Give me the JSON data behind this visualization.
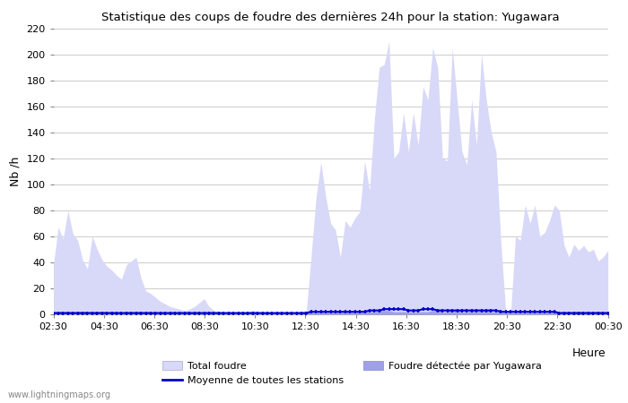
{
  "title": "Statistique des coups de foudre des dernières 24h pour la station: Yugawara",
  "xlabel": "Heure",
  "ylabel": "Nb /h",
  "watermark": "www.lightningmaps.org",
  "ylim": [
    0,
    220
  ],
  "yticks": [
    0,
    20,
    40,
    60,
    80,
    100,
    120,
    140,
    160,
    180,
    200,
    220
  ],
  "xtick_labels": [
    "02:30",
    "04:30",
    "06:30",
    "08:30",
    "10:30",
    "12:30",
    "14:30",
    "16:30",
    "18:30",
    "20:30",
    "22:30",
    "00:30"
  ],
  "color_total": "#d8d8f8",
  "color_detected": "#a0a0e8",
  "color_avg": "#0000cc",
  "bg_color": "#ffffff",
  "grid_color": "#cccccc",
  "total_foudre": [
    38,
    67,
    58,
    80,
    62,
    57,
    42,
    35,
    60,
    50,
    42,
    37,
    34,
    30,
    27,
    38,
    41,
    44,
    28,
    18,
    16,
    13,
    10,
    8,
    6,
    5,
    4,
    3,
    4,
    6,
    9,
    12,
    6,
    3,
    2,
    1,
    0,
    0,
    0,
    1,
    2,
    3,
    2,
    1,
    0,
    0,
    0,
    0,
    0,
    0,
    1,
    2,
    3,
    45,
    90,
    117,
    90,
    70,
    65,
    44,
    72,
    67,
    74,
    79,
    118,
    95,
    150,
    190,
    192,
    210,
    120,
    125,
    155,
    125,
    155,
    130,
    175,
    165,
    205,
    190,
    120,
    118,
    205,
    165,
    125,
    115,
    165,
    130,
    200,
    165,
    140,
    125,
    55,
    2,
    0,
    60,
    57,
    84,
    70,
    84,
    60,
    63,
    72,
    84,
    80,
    53,
    44,
    54,
    49,
    53,
    48,
    50,
    41,
    44,
    49
  ],
  "detected_foudre": [
    2,
    2,
    2,
    2,
    2,
    2,
    2,
    2,
    2,
    2,
    2,
    2,
    2,
    1,
    1,
    2,
    2,
    2,
    2,
    1,
    1,
    1,
    1,
    1,
    1,
    1,
    1,
    1,
    1,
    1,
    1,
    1,
    1,
    1,
    1,
    1,
    1,
    1,
    1,
    1,
    1,
    1,
    1,
    1,
    1,
    1,
    1,
    1,
    1,
    1,
    1,
    1,
    1,
    2,
    2,
    2,
    2,
    2,
    2,
    2,
    2,
    2,
    2,
    2,
    2,
    2,
    2,
    3,
    3,
    3,
    2,
    2,
    2,
    2,
    2,
    2,
    2,
    2,
    3,
    3,
    2,
    2,
    3,
    3,
    2,
    2,
    3,
    2,
    3,
    3,
    2,
    2,
    2,
    2,
    2,
    2,
    2,
    2,
    2,
    2,
    2,
    2,
    2,
    2,
    2,
    2,
    2,
    2,
    2,
    2,
    2,
    2,
    2,
    2,
    2
  ],
  "avg_line": [
    1,
    1,
    1,
    1,
    1,
    1,
    1,
    1,
    1,
    1,
    1,
    1,
    1,
    1,
    1,
    1,
    1,
    1,
    1,
    1,
    1,
    1,
    1,
    1,
    1,
    1,
    1,
    1,
    1,
    1,
    1,
    1,
    1,
    1,
    1,
    1,
    1,
    1,
    1,
    1,
    1,
    1,
    1,
    1,
    1,
    1,
    1,
    1,
    1,
    1,
    1,
    1,
    1,
    2,
    2,
    2,
    2,
    2,
    2,
    2,
    2,
    2,
    2,
    2,
    2,
    3,
    3,
    3,
    4,
    4,
    4,
    4,
    4,
    3,
    3,
    3,
    4,
    4,
    4,
    3,
    3,
    3,
    3,
    3,
    3,
    3,
    3,
    3,
    3,
    3,
    3,
    3,
    2,
    2,
    2,
    2,
    2,
    2,
    2,
    2,
    2,
    2,
    2,
    2,
    1,
    1,
    1,
    1,
    1,
    1,
    1,
    1,
    1,
    1,
    1
  ],
  "legend_total": "Total foudre",
  "legend_avg": "Moyenne de toutes les stations",
  "legend_detected": "Foudre détectée par Yugawara"
}
